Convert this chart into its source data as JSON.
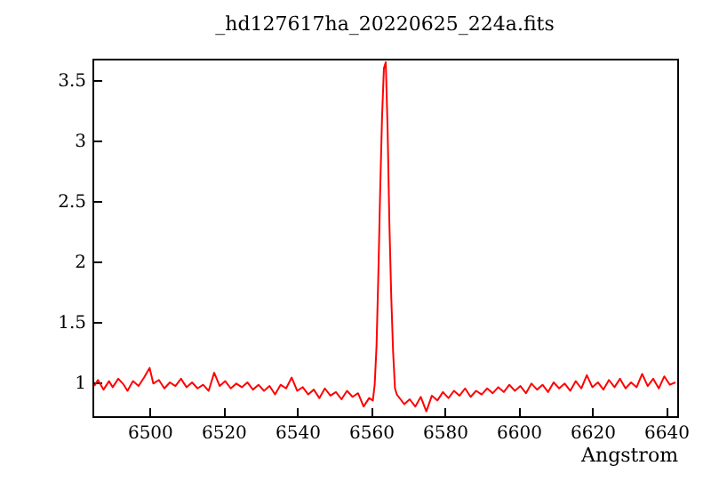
{
  "chart_data": {
    "type": "line",
    "title": "_hd127617ha_20220625_224a.fits",
    "xlabel": "Angstrom",
    "xlim": [
      6484.5,
      6643
    ],
    "ylim": [
      0.72,
      3.68
    ],
    "xticks": [
      6500,
      6520,
      6540,
      6560,
      6580,
      6600,
      6620,
      6640
    ],
    "yticks": [
      1,
      1.5,
      2,
      2.5,
      3,
      3.5
    ],
    "grid": false,
    "x": [
      6485,
      6486,
      6487.5,
      6489,
      6490,
      6491.5,
      6493,
      6494,
      6495.5,
      6497,
      6498.5,
      6500,
      6501,
      6502.5,
      6504,
      6505.5,
      6507,
      6508.5,
      6510,
      6511.5,
      6513,
      6514.5,
      6516,
      6517.5,
      6519,
      6520.5,
      6522,
      6523.5,
      6525,
      6526.5,
      6528,
      6529.5,
      6531,
      6532.5,
      6534,
      6535.5,
      6537,
      6538.5,
      6540,
      6541.5,
      6543,
      6544.5,
      6546,
      6547.5,
      6549,
      6550.5,
      6552,
      6553.5,
      6555,
      6556.5,
      6558,
      6559.5,
      6560.5,
      6561,
      6561.5,
      6562,
      6562.5,
      6563,
      6563.5,
      6564,
      6564.5,
      6565,
      6565.5,
      6566,
      6566.5,
      6567,
      6568,
      6569,
      6570.5,
      6572,
      6573.5,
      6575,
      6576.5,
      6578,
      6579.5,
      6581,
      6582.5,
      6584,
      6585.5,
      6587,
      6588.5,
      6590,
      6591.5,
      6593,
      6594.5,
      6596,
      6597.5,
      6599,
      6600.5,
      6602,
      6603.5,
      6605,
      6606.5,
      6608,
      6609.5,
      6611,
      6612.5,
      6614,
      6615.5,
      6617,
      6618.5,
      6620,
      6621.5,
      6623,
      6624.5,
      6626,
      6627.5,
      6629,
      6630.5,
      6632,
      6633.5,
      6635,
      6636.5,
      6638,
      6639.5,
      6641,
      6642.5
    ],
    "series": [
      {
        "color": "#ff0000",
        "values": [
          0.97,
          1.02,
          0.94,
          1.01,
          0.96,
          1.03,
          0.98,
          0.93,
          1.01,
          0.97,
          1.04,
          1.12,
          0.99,
          1.02,
          0.95,
          1.0,
          0.97,
          1.03,
          0.96,
          1.0,
          0.95,
          0.98,
          0.93,
          1.08,
          0.97,
          1.01,
          0.95,
          0.99,
          0.96,
          1.0,
          0.94,
          0.98,
          0.93,
          0.97,
          0.9,
          0.98,
          0.95,
          1.04,
          0.93,
          0.96,
          0.9,
          0.94,
          0.87,
          0.95,
          0.89,
          0.92,
          0.86,
          0.93,
          0.88,
          0.91,
          0.8,
          0.87,
          0.85,
          0.98,
          1.3,
          1.9,
          2.6,
          3.2,
          3.6,
          3.65,
          3.1,
          2.3,
          1.7,
          1.25,
          0.95,
          0.9,
          0.86,
          0.82,
          0.86,
          0.8,
          0.88,
          0.76,
          0.89,
          0.85,
          0.92,
          0.87,
          0.93,
          0.89,
          0.95,
          0.88,
          0.93,
          0.9,
          0.95,
          0.91,
          0.96,
          0.92,
          0.98,
          0.93,
          0.97,
          0.91,
          0.99,
          0.94,
          0.98,
          0.92,
          1.0,
          0.95,
          0.99,
          0.93,
          1.01,
          0.95,
          1.06,
          0.96,
          1.0,
          0.94,
          1.02,
          0.96,
          1.03,
          0.95,
          1.0,
          0.96,
          1.07,
          0.97,
          1.03,
          0.95,
          1.05,
          0.98,
          1.0
        ]
      }
    ]
  }
}
